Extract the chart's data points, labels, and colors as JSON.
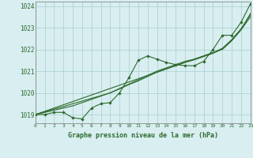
{
  "x": [
    0,
    1,
    2,
    3,
    4,
    5,
    6,
    7,
    8,
    9,
    10,
    11,
    12,
    13,
    14,
    15,
    16,
    17,
    18,
    19,
    20,
    21,
    22,
    23
  ],
  "line_smooth1": [
    1019.0,
    1019.15,
    1019.3,
    1019.45,
    1019.6,
    1019.75,
    1019.9,
    1020.05,
    1020.2,
    1020.35,
    1020.5,
    1020.65,
    1020.8,
    1020.95,
    1021.1,
    1021.25,
    1021.4,
    1021.55,
    1021.7,
    1021.85,
    1022.0,
    1022.4,
    1022.9,
    1023.5
  ],
  "line_smooth2": [
    1019.0,
    1019.12,
    1019.25,
    1019.37,
    1019.5,
    1019.62,
    1019.75,
    1019.87,
    1020.0,
    1020.2,
    1020.4,
    1020.6,
    1020.8,
    1021.0,
    1021.15,
    1021.3,
    1021.45,
    1021.55,
    1021.7,
    1021.85,
    1022.05,
    1022.45,
    1022.95,
    1023.6
  ],
  "line_smooth3": [
    1019.0,
    1019.1,
    1019.2,
    1019.3,
    1019.4,
    1019.55,
    1019.7,
    1019.85,
    1020.0,
    1020.18,
    1020.38,
    1020.55,
    1020.75,
    1020.95,
    1021.1,
    1021.25,
    1021.4,
    1021.52,
    1021.67,
    1021.82,
    1022.02,
    1022.42,
    1022.92,
    1023.65
  ],
  "line_zigzag": [
    1019.0,
    1019.0,
    1019.1,
    1019.1,
    1018.85,
    1018.8,
    1019.3,
    1019.5,
    1019.55,
    1020.0,
    1020.7,
    1021.5,
    1021.7,
    1021.55,
    1021.4,
    1021.3,
    1021.25,
    1021.25,
    1021.45,
    1022.0,
    1022.65,
    1022.65,
    1023.25,
    1024.1
  ],
  "bg_color": "#d8eef0",
  "line_color": "#2d6a2d",
  "grid_color": "#a8cece",
  "title": "Graphe pression niveau de la mer (hPa)",
  "xlim": [
    0,
    23
  ],
  "ylim": [
    1018.6,
    1024.2
  ],
  "yticks": [
    1019,
    1020,
    1021,
    1022,
    1023,
    1024
  ],
  "xticks": [
    0,
    1,
    2,
    3,
    4,
    5,
    6,
    7,
    8,
    9,
    10,
    11,
    12,
    13,
    14,
    15,
    16,
    17,
    18,
    19,
    20,
    21,
    22,
    23
  ]
}
